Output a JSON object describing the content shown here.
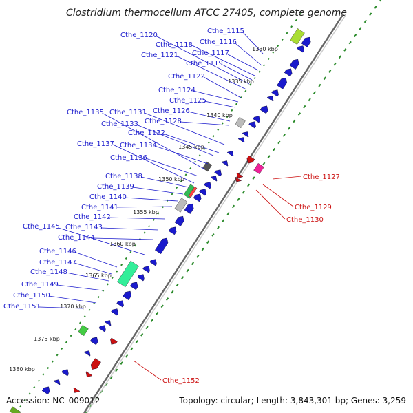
{
  "title": "Clostridium thermocellum ATCC 27405, complete genome",
  "footer": {
    "accession": "Accession: NC_009012",
    "summary": "Topology: circular; Length: 3,843,301 bp; Genes: 3,259"
  },
  "colors": {
    "forward": "#1a1acc",
    "reverse": "#cc1111",
    "backbone": "#888888",
    "tick": "#2a8a2a"
  },
  "kbp_labels": [
    {
      "text": "1330 kbp",
      "kbp": 1330
    },
    {
      "text": "1335 kbp",
      "kbp": 1335
    },
    {
      "text": "1340 kbp",
      "kbp": 1340
    },
    {
      "text": "1345 kbp",
      "kbp": 1345
    },
    {
      "text": "1350 kbp",
      "kbp": 1350
    },
    {
      "text": "1355 kbp",
      "kbp": 1355
    },
    {
      "text": "1360 kbp",
      "kbp": 1360
    },
    {
      "text": "1365 kbp",
      "kbp": 1365
    },
    {
      "text": "1370 kbp",
      "kbp": 1370
    },
    {
      "text": "1375 kbp",
      "kbp": 1375
    },
    {
      "text": "1380 kbp",
      "kbp": 1380
    }
  ],
  "forward_genes": [
    "Cthe_1115",
    "Cthe_1116",
    "Cthe_1117",
    "Cthe_1118",
    "Cthe_1119",
    "Cthe_1120",
    "Cthe_1121",
    "Cthe_1122",
    "Cthe_1124",
    "Cthe_1125",
    "Cthe_1126",
    "Cthe_1128",
    "Cthe_1131",
    "Cthe_1132",
    "Cthe_1133",
    "Cthe_1134",
    "Cthe_1135",
    "Cthe_1136",
    "Cthe_1137",
    "Cthe_1138",
    "Cthe_1139",
    "Cthe_1140",
    "Cthe_1141",
    "Cthe_1142",
    "Cthe_1143",
    "Cthe_1144",
    "Cthe_1145",
    "Cthe_1146",
    "Cthe_1147",
    "Cthe_1148",
    "Cthe_1149",
    "Cthe_1150",
    "Cthe_1151"
  ],
  "reverse_genes": [
    "Cthe_1127",
    "Cthe_1129",
    "Cthe_1130",
    "Cthe_1152"
  ]
}
